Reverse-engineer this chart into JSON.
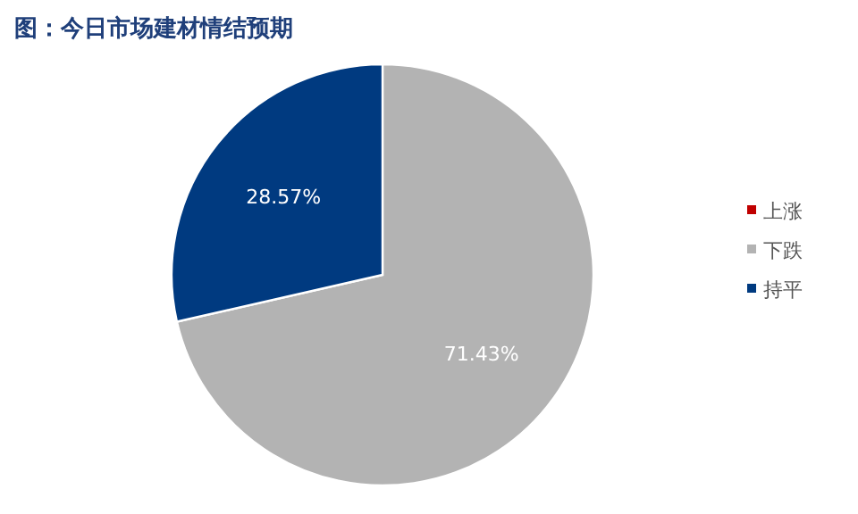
{
  "chart_data": {
    "type": "pie",
    "title": "图：今日市场建材情结预期",
    "categories": [
      "上涨",
      "下跌",
      "持平"
    ],
    "values": [
      0,
      71.43,
      28.57
    ],
    "colors": [
      "#c00000",
      "#b3b3b3",
      "#003a80"
    ],
    "value_labels": [
      null,
      "71.43%",
      "28.57%"
    ],
    "legend": "right"
  }
}
